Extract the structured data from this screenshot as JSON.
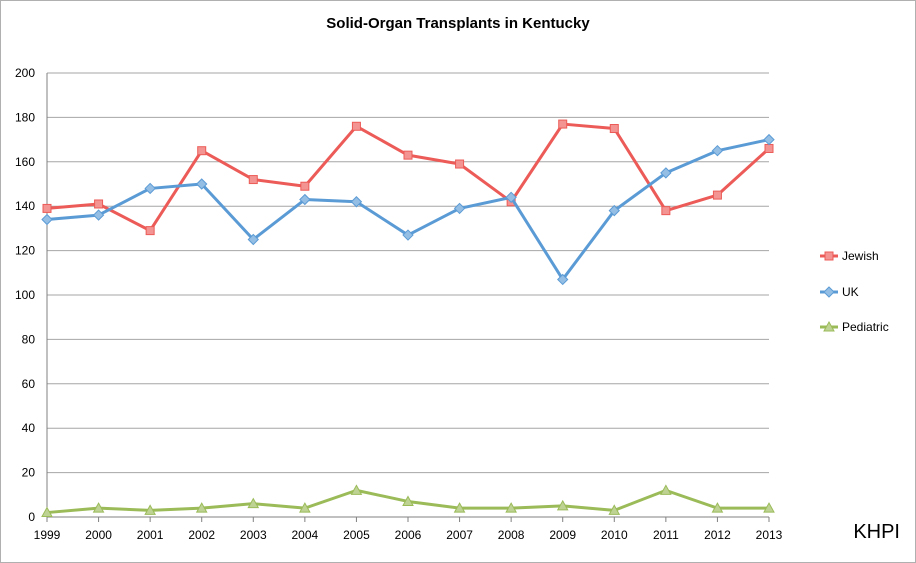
{
  "chart_data": {
    "type": "line",
    "title": "Solid-Organ Transplants in Kentucky",
    "xlabel": "",
    "ylabel": "",
    "categories": [
      "1999",
      "2000",
      "2001",
      "2002",
      "2003",
      "2004",
      "2005",
      "2006",
      "2007",
      "2008",
      "2009",
      "2010",
      "2011",
      "2012",
      "2013"
    ],
    "ylim": [
      0,
      200
    ],
    "yticks": [
      "0",
      "20",
      "40",
      "60",
      "80",
      "100",
      "120",
      "140",
      "160",
      "180",
      "200"
    ],
    "grid": "horizontal",
    "legend_position": "right",
    "series": [
      {
        "name": "Jewish",
        "color": "#ec5b57",
        "marker": "square",
        "values": [
          139,
          141,
          129,
          165,
          152,
          149,
          176,
          163,
          159,
          142,
          177,
          175,
          138,
          145,
          166
        ]
      },
      {
        "name": "UK",
        "color": "#5b9bd5",
        "marker": "diamond",
        "values": [
          134,
          136,
          148,
          150,
          125,
          143,
          142,
          127,
          139,
          144,
          107,
          138,
          155,
          165,
          170
        ]
      },
      {
        "name": "Pediatric",
        "color": "#9bbb59",
        "marker": "triangle",
        "values": [
          2,
          4,
          3,
          4,
          6,
          4,
          12,
          7,
          4,
          4,
          5,
          3,
          12,
          4,
          4
        ]
      }
    ],
    "annotation": "KHPI"
  }
}
